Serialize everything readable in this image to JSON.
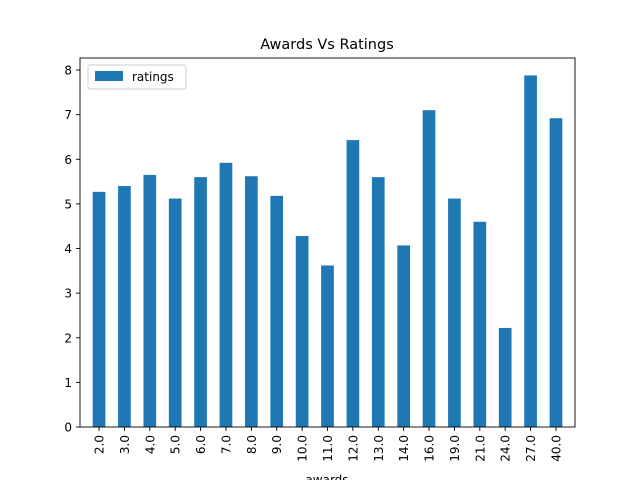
{
  "chart_data": {
    "type": "bar",
    "title": "Awards Vs Ratings",
    "xlabel": "awards",
    "ylabel": "",
    "categories": [
      "2.0",
      "3.0",
      "4.0",
      "5.0",
      "6.0",
      "7.0",
      "8.0",
      "9.0",
      "10.0",
      "11.0",
      "12.0",
      "13.0",
      "14.0",
      "16.0",
      "19.0",
      "21.0",
      "24.0",
      "27.0",
      "40.0"
    ],
    "series": [
      {
        "name": "ratings",
        "values": [
          5.27,
          5.4,
          5.65,
          5.12,
          5.6,
          5.92,
          5.62,
          5.18,
          4.28,
          3.62,
          6.43,
          5.6,
          4.07,
          7.1,
          5.12,
          4.6,
          2.22,
          7.88,
          6.92
        ]
      }
    ],
    "ylim": [
      0,
      8.27
    ],
    "yticks": [
      0,
      1,
      2,
      3,
      4,
      5,
      6,
      7,
      8
    ],
    "grid": false,
    "legend_position": "top-left",
    "colors": {
      "bar": "#1f77b4"
    }
  }
}
